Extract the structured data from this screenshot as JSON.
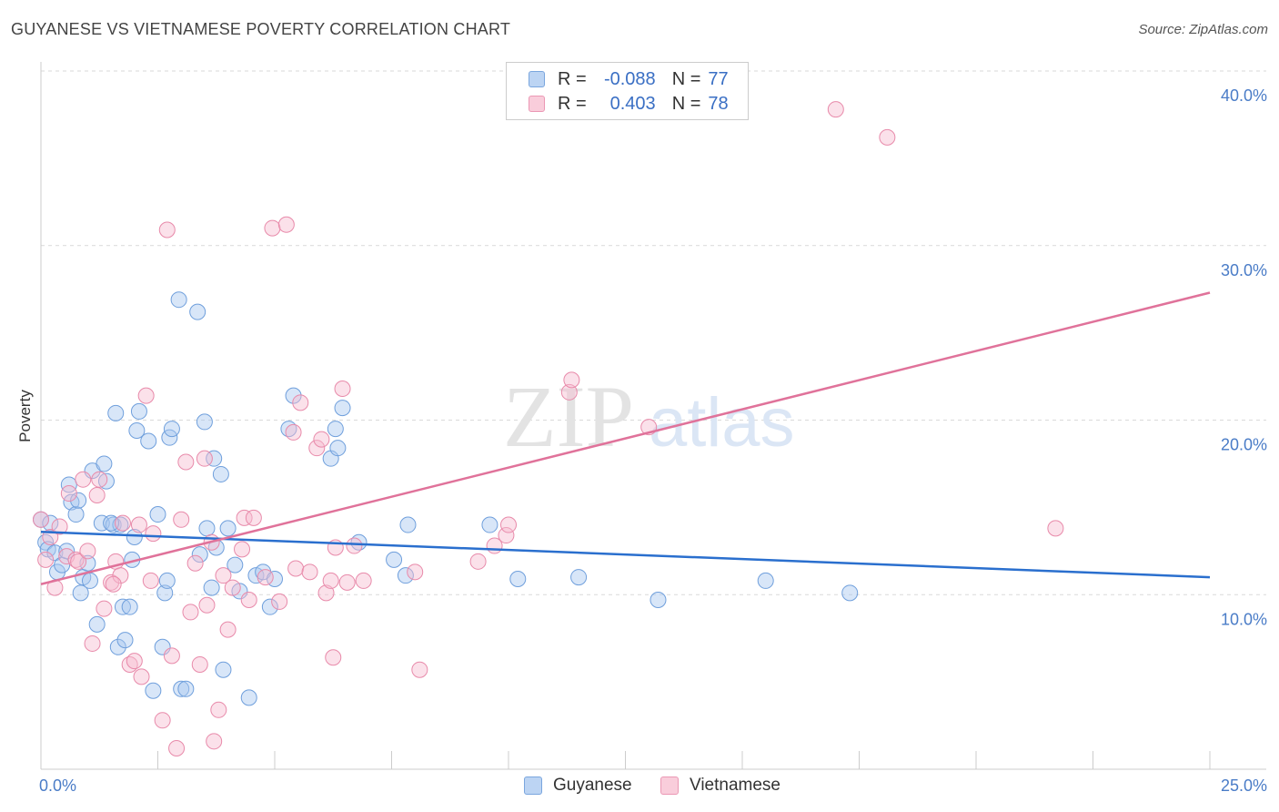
{
  "title": "GUYANESE VS VIETNAMESE POVERTY CORRELATION CHART",
  "source": "Source: ZipAtlas.com",
  "watermark": {
    "zip": "ZIP",
    "atlas": "atlas"
  },
  "legend": {
    "rows": [
      {
        "r_label": "R =",
        "r_value": "-0.088",
        "n_label": "N =",
        "n_value": "77"
      },
      {
        "r_label": "R =",
        "r_value": "0.403",
        "n_label": "N =",
        "n_value": "78"
      }
    ]
  },
  "bottom_legend": {
    "series1": "Guyanese",
    "series2": "Vietnamese"
  },
  "colors": {
    "guyanese_fill": "#a9c8f0",
    "guyanese_stroke": "#6f9fdc",
    "guyanese_line": "#2a6fce",
    "vietnamese_fill": "#f6bcd0",
    "vietnamese_stroke": "#e88aaa",
    "vietnamese_line": "#e0729a",
    "tick_text": "#4a7cc7",
    "grid": "#d9d9d9"
  },
  "chart_data": {
    "type": "scatter",
    "title": "GUYANESE VS VIETNAMESE POVERTY CORRELATION CHART",
    "xlabel": "",
    "ylabel": "Poverty",
    "xlim": [
      0,
      25
    ],
    "ylim": [
      0,
      40
    ],
    "x_tick_labels": [
      "0.0%",
      "25.0%"
    ],
    "y_ticks": [
      10,
      20,
      30,
      40
    ],
    "y_tick_labels": [
      "10.0%",
      "20.0%",
      "30.0%",
      "40.0%"
    ],
    "grid": true,
    "series": [
      {
        "name": "Guyanese",
        "r": -0.088,
        "n": 77,
        "trend": {
          "x": [
            0,
            25
          ],
          "y": [
            13.6,
            11.0
          ]
        },
        "points": [
          [
            0.0,
            14.3
          ],
          [
            0.1,
            13.0
          ],
          [
            0.15,
            12.6
          ],
          [
            0.2,
            14.1
          ],
          [
            0.3,
            12.4
          ],
          [
            0.35,
            11.3
          ],
          [
            0.45,
            11.7
          ],
          [
            0.55,
            12.5
          ],
          [
            0.6,
            16.3
          ],
          [
            0.65,
            15.3
          ],
          [
            0.75,
            14.6
          ],
          [
            0.8,
            15.4
          ],
          [
            0.85,
            10.1
          ],
          [
            0.9,
            11.0
          ],
          [
            1.0,
            11.8
          ],
          [
            1.05,
            10.8
          ],
          [
            1.1,
            17.1
          ],
          [
            1.2,
            8.3
          ],
          [
            1.3,
            14.1
          ],
          [
            1.35,
            17.5
          ],
          [
            1.4,
            16.5
          ],
          [
            1.55,
            14.0
          ],
          [
            1.6,
            20.4
          ],
          [
            1.65,
            7.0
          ],
          [
            1.7,
            14.0
          ],
          [
            1.75,
            9.3
          ],
          [
            1.8,
            7.4
          ],
          [
            1.9,
            9.3
          ],
          [
            1.95,
            12.0
          ],
          [
            2.0,
            13.3
          ],
          [
            2.05,
            19.4
          ],
          [
            2.1,
            20.5
          ],
          [
            2.3,
            18.8
          ],
          [
            2.4,
            4.5
          ],
          [
            2.5,
            14.6
          ],
          [
            2.6,
            7.0
          ],
          [
            2.65,
            10.1
          ],
          [
            2.7,
            10.8
          ],
          [
            2.75,
            19.0
          ],
          [
            2.95,
            26.9
          ],
          [
            3.0,
            4.6
          ],
          [
            3.1,
            4.6
          ],
          [
            3.35,
            26.2
          ],
          [
            3.4,
            12.3
          ],
          [
            3.5,
            19.9
          ],
          [
            3.55,
            13.8
          ],
          [
            3.65,
            10.4
          ],
          [
            3.7,
            17.8
          ],
          [
            3.75,
            12.7
          ],
          [
            3.85,
            16.9
          ],
          [
            3.9,
            5.7
          ],
          [
            4.0,
            13.8
          ],
          [
            4.15,
            11.7
          ],
          [
            4.25,
            10.2
          ],
          [
            4.45,
            4.1
          ],
          [
            4.6,
            11.1
          ],
          [
            4.75,
            11.3
          ],
          [
            4.9,
            9.3
          ],
          [
            5.0,
            10.9
          ],
          [
            5.3,
            19.5
          ],
          [
            5.4,
            21.4
          ],
          [
            6.2,
            17.8
          ],
          [
            6.35,
            18.4
          ],
          [
            6.8,
            13.0
          ],
          [
            7.55,
            12.0
          ],
          [
            7.8,
            11.1
          ],
          [
            7.85,
            14.0
          ],
          [
            9.6,
            14.0
          ],
          [
            10.2,
            10.9
          ],
          [
            11.5,
            11.0
          ],
          [
            13.2,
            9.7
          ],
          [
            15.5,
            10.8
          ],
          [
            17.3,
            10.1
          ],
          [
            6.3,
            19.5
          ],
          [
            6.45,
            20.7
          ],
          [
            2.8,
            19.5
          ],
          [
            1.5,
            14.1
          ]
        ]
      },
      {
        "name": "Vietnamese",
        "r": 0.403,
        "n": 78,
        "trend": {
          "x": [
            0,
            25
          ],
          "y": [
            10.6,
            27.3
          ]
        },
        "points": [
          [
            0.0,
            14.3
          ],
          [
            0.1,
            12.0
          ],
          [
            0.2,
            13.3
          ],
          [
            0.3,
            10.4
          ],
          [
            0.4,
            13.9
          ],
          [
            0.55,
            12.2
          ],
          [
            0.6,
            15.8
          ],
          [
            0.75,
            12.0
          ],
          [
            0.8,
            11.9
          ],
          [
            0.9,
            16.6
          ],
          [
            1.0,
            12.5
          ],
          [
            1.1,
            7.2
          ],
          [
            1.2,
            15.7
          ],
          [
            1.25,
            16.6
          ],
          [
            1.35,
            9.2
          ],
          [
            1.5,
            10.7
          ],
          [
            1.6,
            11.9
          ],
          [
            1.7,
            11.1
          ],
          [
            1.75,
            14.1
          ],
          [
            1.9,
            6.0
          ],
          [
            2.0,
            6.2
          ],
          [
            2.1,
            14.0
          ],
          [
            2.15,
            5.3
          ],
          [
            2.25,
            21.4
          ],
          [
            2.4,
            13.5
          ],
          [
            2.6,
            2.8
          ],
          [
            2.7,
            30.9
          ],
          [
            2.8,
            6.5
          ],
          [
            2.9,
            1.2
          ],
          [
            3.0,
            14.3
          ],
          [
            3.1,
            17.6
          ],
          [
            3.2,
            9.0
          ],
          [
            3.3,
            11.8
          ],
          [
            3.4,
            6.0
          ],
          [
            3.5,
            17.8
          ],
          [
            3.55,
            9.4
          ],
          [
            3.7,
            1.6
          ],
          [
            3.8,
            3.4
          ],
          [
            3.9,
            11.1
          ],
          [
            4.0,
            8.0
          ],
          [
            4.1,
            10.4
          ],
          [
            4.3,
            12.6
          ],
          [
            4.35,
            14.4
          ],
          [
            4.45,
            9.7
          ],
          [
            4.55,
            14.4
          ],
          [
            4.8,
            11.0
          ],
          [
            4.95,
            31.0
          ],
          [
            5.1,
            9.6
          ],
          [
            5.25,
            31.2
          ],
          [
            5.4,
            19.3
          ],
          [
            5.45,
            11.5
          ],
          [
            5.55,
            21.0
          ],
          [
            5.75,
            11.3
          ],
          [
            5.9,
            18.4
          ],
          [
            6.0,
            18.9
          ],
          [
            6.1,
            10.1
          ],
          [
            6.2,
            10.8
          ],
          [
            6.25,
            6.4
          ],
          [
            6.45,
            21.8
          ],
          [
            6.55,
            10.7
          ],
          [
            6.7,
            12.8
          ],
          [
            6.9,
            10.8
          ],
          [
            8.1,
            5.7
          ],
          [
            8.0,
            11.3
          ],
          [
            9.35,
            11.9
          ],
          [
            9.7,
            12.8
          ],
          [
            9.95,
            13.4
          ],
          [
            10.0,
            14.0
          ],
          [
            11.3,
            21.6
          ],
          [
            11.35,
            22.3
          ],
          [
            13.0,
            19.6
          ],
          [
            17.0,
            37.8
          ],
          [
            18.1,
            36.2
          ],
          [
            21.7,
            13.8
          ],
          [
            2.35,
            10.8
          ],
          [
            3.65,
            13.0
          ],
          [
            1.55,
            10.6
          ],
          [
            6.3,
            12.7
          ]
        ]
      }
    ]
  }
}
